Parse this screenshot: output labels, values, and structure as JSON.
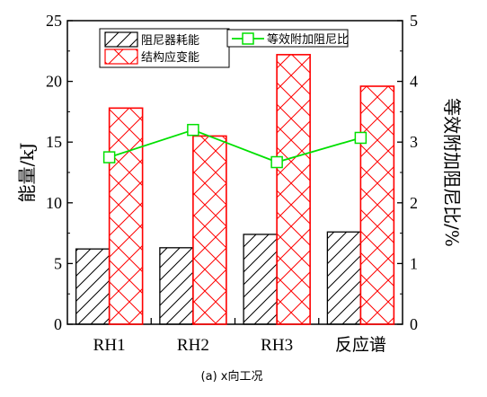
{
  "chart_data": {
    "type": "bar",
    "caption": "(a) x向工况",
    "categories": [
      "RH1",
      "RH2",
      "RH3",
      "反应谱"
    ],
    "ylabel": "能量/kJ",
    "ylabel_right": "等效附加阻尼比/%",
    "ylim": [
      0,
      25
    ],
    "yticks": [
      "0",
      "5",
      "10",
      "15",
      "20",
      "25"
    ],
    "ylim_right": [
      0,
      5
    ],
    "yticks_right": [
      "0",
      "1",
      "2",
      "3",
      "4",
      "5"
    ],
    "series": [
      {
        "name": "阻尼器耗能",
        "values": [
          6.2,
          6.3,
          7.4,
          7.6
        ],
        "color": "#000000",
        "pattern": "diagonal-hatch"
      },
      {
        "name": "结构应变能",
        "values": [
          17.8,
          15.5,
          22.2,
          19.6
        ],
        "color": "#ff0000",
        "pattern": "cross-hatch"
      }
    ],
    "line_series": {
      "name": "等效附加阻尼比",
      "axis": "right",
      "values": [
        2.75,
        3.2,
        2.67,
        3.07
      ],
      "color": "#00e000",
      "marker": "open-square"
    },
    "legend_position": "top"
  }
}
